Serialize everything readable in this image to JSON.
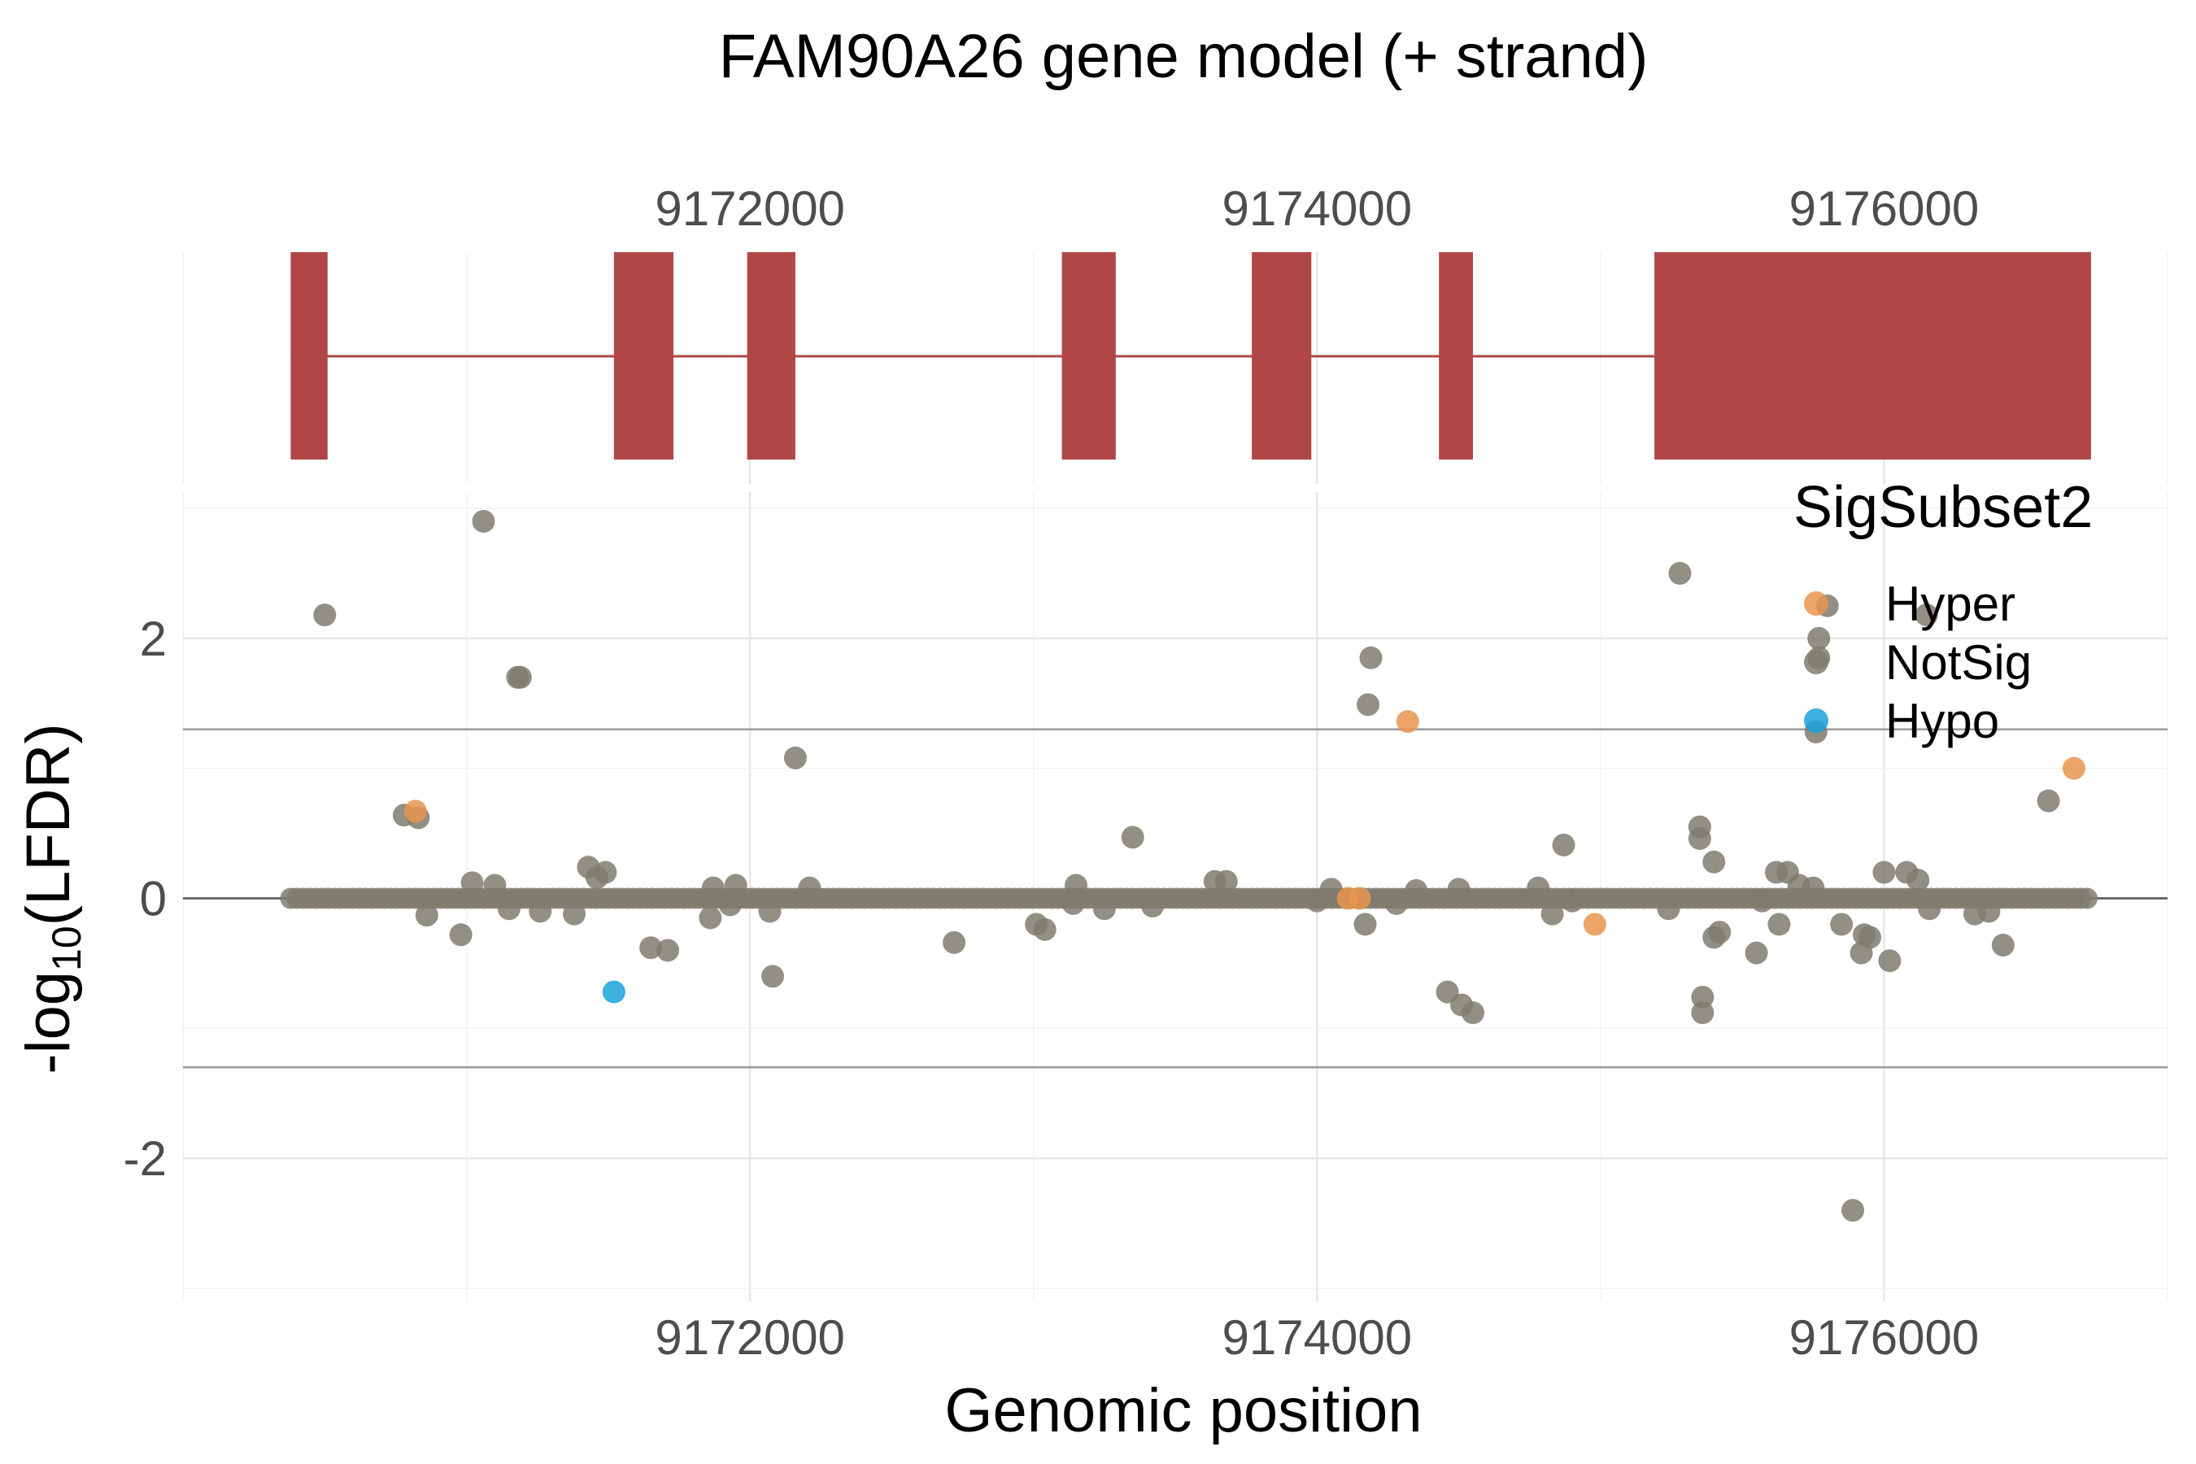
{
  "chart_data": {
    "type": "scatter",
    "title": "FAM90A26 gene model (+ strand)",
    "xlabel": "Genomic position",
    "ylabel_main": "-log",
    "ylabel_sub": "10",
    "ylabel_rest": "(LFDR)",
    "xlim": [
      9170000,
      9177000
    ],
    "ylim": [
      -3.1,
      3.0
    ],
    "x_ticks": [
      9172000,
      9174000,
      9176000
    ],
    "x_tick_labels": [
      "9172000",
      "9174000",
      "9176000"
    ],
    "y_ticks": [
      2,
      0,
      -2
    ],
    "y_tick_labels": [
      "2",
      "0",
      "-2"
    ],
    "threshold_lines": [
      1.3,
      -1.3
    ],
    "grid": true,
    "legend_position": "top-right",
    "legend_title": "SigSubset2",
    "colors": {
      "Hyper": "#e8954f",
      "NotSig": "#7f7b6e",
      "Hypo": "#1aa3d9",
      "gene": "#b04646",
      "threshold": "#9a9a9a",
      "zero": "#555555"
    },
    "legend": [
      "Hyper",
      "NotSig",
      "Hypo"
    ],
    "gene_model": {
      "strand": "+",
      "start": 9170380,
      "end": 9176730,
      "exons": [
        [
          9170380,
          9170510
        ],
        [
          9171520,
          9171730
        ],
        [
          9171990,
          9172160
        ],
        [
          9173100,
          9173290
        ],
        [
          9173770,
          9173980
        ],
        [
          9174430,
          9174550
        ],
        [
          9175190,
          9176730
        ]
      ]
    },
    "baseline_range": [
      9170380,
      9176730
    ],
    "series": [
      {
        "name": "NotSig",
        "points": [
          [
            9170500,
            2.18
          ],
          [
            9171060,
            2.9
          ],
          [
            9171180,
            1.7
          ],
          [
            9171190,
            1.7
          ],
          [
            9170780,
            0.64
          ],
          [
            9170830,
            0.62
          ],
          [
            9172160,
            1.08
          ],
          [
            9173350,
            0.47
          ],
          [
            9174190,
            1.85
          ],
          [
            9174180,
            1.49
          ],
          [
            9174870,
            0.41
          ],
          [
            9175280,
            2.5
          ],
          [
            9175800,
            2.25
          ],
          [
            9175770,
            2.0
          ],
          [
            9175770,
            1.85
          ],
          [
            9175760,
            1.28
          ],
          [
            9176150,
            2.18
          ],
          [
            9176580,
            0.75
          ],
          [
            9175350,
            0.55
          ],
          [
            9175350,
            0.46
          ],
          [
            9175400,
            0.28
          ],
          [
            9175620,
            0.2
          ],
          [
            9175660,
            0.2
          ],
          [
            9175700,
            0.1
          ],
          [
            9175750,
            0.08
          ],
          [
            9176000,
            0.2
          ],
          [
            9176080,
            0.2
          ],
          [
            9176120,
            0.14
          ],
          [
            9171430,
            0.24
          ],
          [
            9171460,
            0.16
          ],
          [
            9171490,
            0.2
          ],
          [
            9171020,
            0.12
          ],
          [
            9171100,
            0.1
          ],
          [
            9171870,
            0.08
          ],
          [
            9171950,
            0.1
          ],
          [
            9172210,
            0.08
          ],
          [
            9173150,
            0.1
          ],
          [
            9173640,
            0.13
          ],
          [
            9173680,
            0.13
          ],
          [
            9174050,
            0.07
          ],
          [
            9174350,
            0.06
          ],
          [
            9174500,
            0.07
          ],
          [
            9174780,
            0.08
          ],
          [
            9170860,
            -0.13
          ],
          [
            9170980,
            -0.28
          ],
          [
            9171150,
            -0.08
          ],
          [
            9171260,
            -0.1
          ],
          [
            9171380,
            -0.12
          ],
          [
            9171650,
            -0.38
          ],
          [
            9171710,
            -0.4
          ],
          [
            9171860,
            -0.15
          ],
          [
            9171930,
            -0.05
          ],
          [
            9172070,
            -0.1
          ],
          [
            9172080,
            -0.6
          ],
          [
            9172720,
            -0.34
          ],
          [
            9173010,
            -0.2
          ],
          [
            9173040,
            -0.24
          ],
          [
            9173140,
            -0.04
          ],
          [
            9173250,
            -0.08
          ],
          [
            9173420,
            -0.06
          ],
          [
            9174000,
            -0.02
          ],
          [
            9174170,
            -0.2
          ],
          [
            9174280,
            -0.04
          ],
          [
            9174460,
            -0.72
          ],
          [
            9174510,
            -0.82
          ],
          [
            9174550,
            -0.88
          ],
          [
            9174830,
            -0.12
          ],
          [
            9175240,
            -0.08
          ],
          [
            9175360,
            -0.76
          ],
          [
            9175360,
            -0.88
          ],
          [
            9175400,
            -0.3
          ],
          [
            9175420,
            -0.26
          ],
          [
            9175550,
            -0.42
          ],
          [
            9175630,
            -0.2
          ],
          [
            9175850,
            -0.2
          ],
          [
            9175890,
            -2.4
          ],
          [
            9175920,
            -0.42
          ],
          [
            9175930,
            -0.28
          ],
          [
            9175950,
            -0.3
          ],
          [
            9176020,
            -0.48
          ],
          [
            9176160,
            -0.08
          ],
          [
            9176320,
            -0.12
          ],
          [
            9176420,
            -0.36
          ],
          [
            9176370,
            -0.1
          ],
          [
            9175570,
            -0.02
          ],
          [
            9174900,
            -0.02
          ]
        ]
      },
      {
        "name": "Hyper",
        "points": [
          [
            9170820,
            0.67
          ],
          [
            9174320,
            1.36
          ],
          [
            9176670,
            1.0
          ],
          [
            9174110,
            0.0
          ],
          [
            9174150,
            0.0
          ],
          [
            9174980,
            -0.2
          ]
        ]
      },
      {
        "name": "Hypo",
        "points": [
          [
            9171520,
            -0.72
          ]
        ]
      }
    ]
  }
}
